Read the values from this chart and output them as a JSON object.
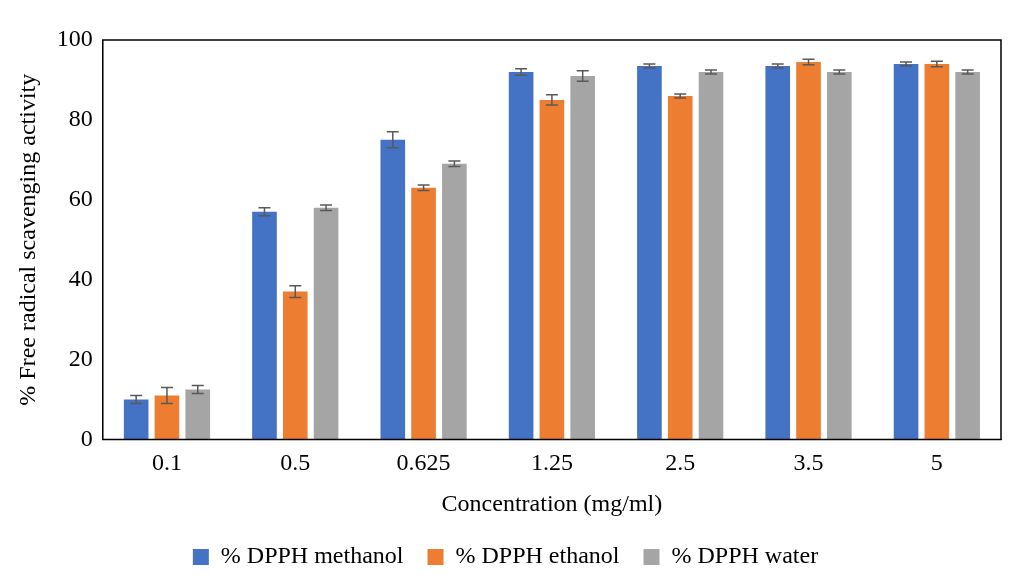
{
  "chart_data": {
    "type": "bar",
    "xlabel": "Concentration (mg/ml)",
    "ylabel": "% Free radical scavenging activity",
    "categories": [
      "0.1",
      "0.5",
      "0.625",
      "1.25",
      "2.5",
      "3.5",
      "5"
    ],
    "series": [
      {
        "name": "% DPPH methanol",
        "color": "#4472c4",
        "values": [
          10,
          57,
          75,
          92,
          93.5,
          93.5,
          94
        ],
        "errors": [
          1,
          1,
          2,
          0.8,
          0.5,
          0.5,
          0.5
        ]
      },
      {
        "name": "% DPPH ethanol",
        "color": "#ed7d31",
        "values": [
          11,
          37,
          63,
          85,
          86,
          94.5,
          94
        ],
        "errors": [
          2,
          1.5,
          0.7,
          1.3,
          0.5,
          0.7,
          0.7
        ]
      },
      {
        "name": "% DPPH water",
        "color": "#a5a5a5",
        "values": [
          12.5,
          58,
          69,
          91,
          92,
          92,
          92
        ],
        "errors": [
          1,
          0.7,
          0.7,
          1.3,
          0.5,
          0.5,
          0.5
        ]
      }
    ],
    "ylim": [
      0,
      100
    ],
    "yticks": [
      0,
      20,
      40,
      60,
      80,
      100
    ],
    "grid": false,
    "legend": "bottom"
  }
}
